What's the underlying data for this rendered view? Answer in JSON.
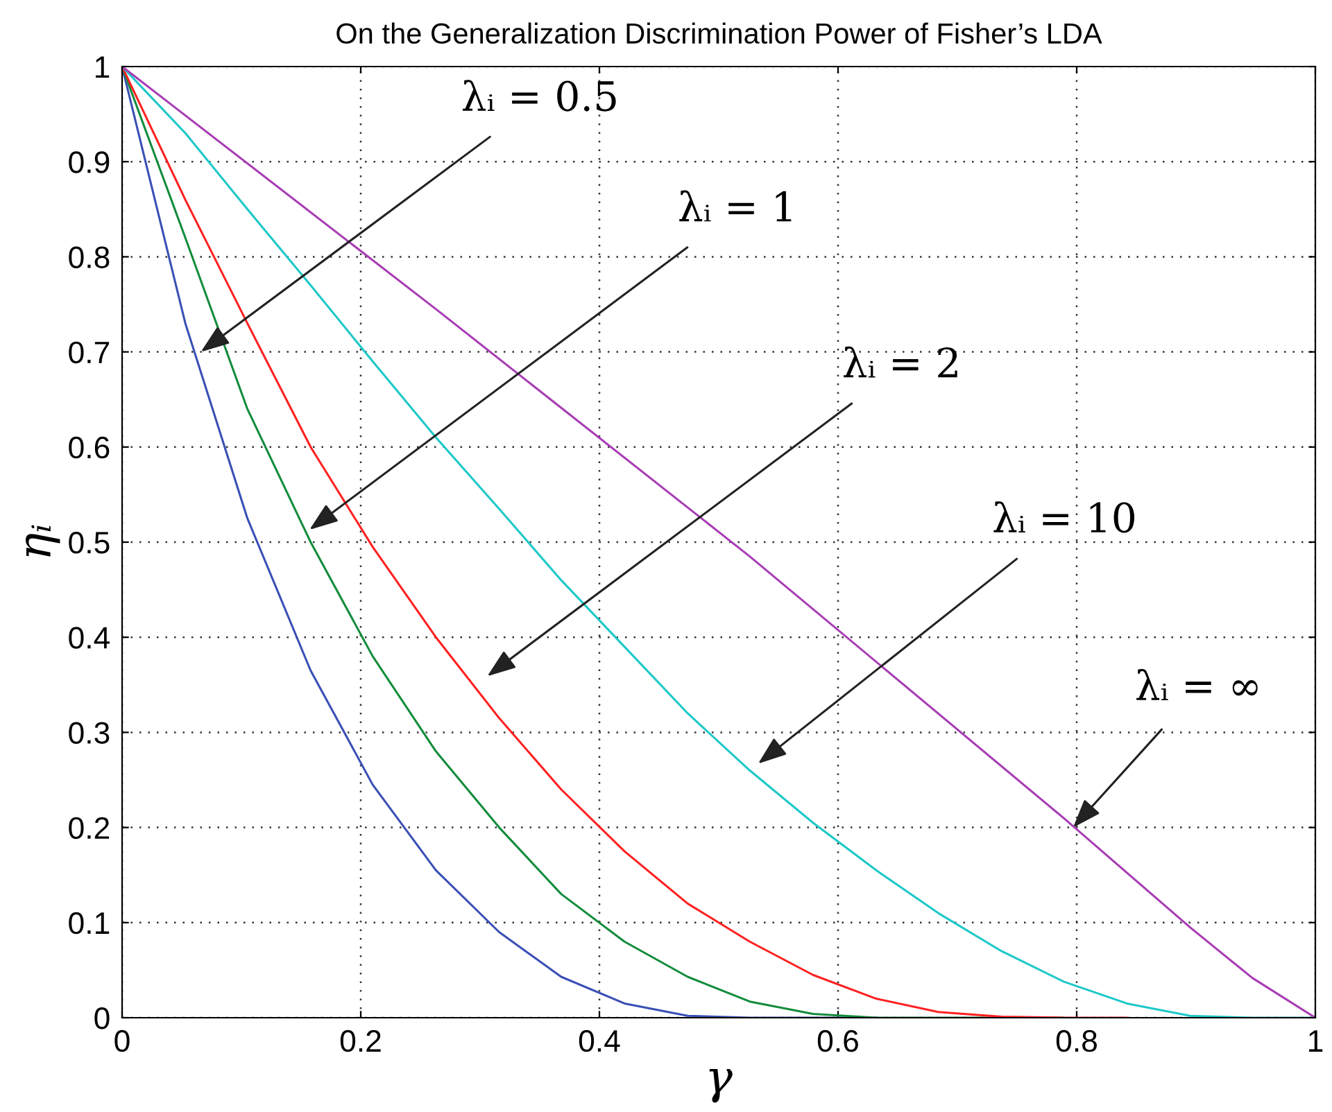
{
  "chart_data": {
    "type": "line",
    "title": "On the Generalization Discrimination Power of Fisher’s LDA",
    "xlabel": "γ",
    "ylabel": "ηᵢ",
    "xlim": [
      0,
      1
    ],
    "ylim": [
      0,
      1
    ],
    "xticks": [
      0,
      0.2,
      0.4,
      0.6,
      0.8,
      1
    ],
    "yticks": [
      0,
      0.1,
      0.2,
      0.3,
      0.4,
      0.5,
      0.6,
      0.7,
      0.8,
      0.9,
      1
    ],
    "grid": true,
    "line_style": "solid",
    "marker": "none",
    "series": [
      {
        "color": "#3a4fb5",
        "x": [
          0,
          0.053,
          0.105,
          0.158,
          0.21,
          0.263,
          0.316,
          0.368,
          0.421,
          0.474,
          0.526,
          0.579,
          0.632
        ],
        "values": [
          1,
          0.73,
          0.525,
          0.365,
          0.245,
          0.155,
          0.09,
          0.043,
          0.015,
          0.002,
          0,
          0,
          0
        ]
      },
      {
        "color": "#138c3c",
        "x": [
          0,
          0.053,
          0.105,
          0.158,
          0.21,
          0.263,
          0.316,
          0.368,
          0.421,
          0.474,
          0.526,
          0.579,
          0.632,
          0.684,
          0.737,
          0.789
        ],
        "values": [
          1,
          0.82,
          0.64,
          0.5,
          0.38,
          0.28,
          0.2,
          0.13,
          0.08,
          0.043,
          0.017,
          0.004,
          0,
          0,
          0,
          0
        ]
      },
      {
        "color": "#ff2020",
        "x": [
          0,
          0.053,
          0.105,
          0.158,
          0.21,
          0.263,
          0.316,
          0.368,
          0.421,
          0.474,
          0.526,
          0.579,
          0.632,
          0.684,
          0.737,
          0.789,
          0.842
        ],
        "values": [
          1,
          0.86,
          0.73,
          0.6,
          0.495,
          0.4,
          0.315,
          0.24,
          0.175,
          0.12,
          0.08,
          0.045,
          0.02,
          0.006,
          0.001,
          0,
          0
        ]
      },
      {
        "color": "#1ec8c8",
        "x": [
          0,
          0.053,
          0.105,
          0.158,
          0.21,
          0.263,
          0.316,
          0.368,
          0.421,
          0.474,
          0.526,
          0.579,
          0.632,
          0.684,
          0.737,
          0.789,
          0.842,
          0.895,
          0.947,
          1
        ],
        "values": [
          1,
          0.93,
          0.85,
          0.77,
          0.69,
          0.61,
          0.535,
          0.46,
          0.39,
          0.32,
          0.26,
          0.205,
          0.155,
          0.11,
          0.07,
          0.038,
          0.015,
          0.002,
          0,
          0
        ]
      },
      {
        "color": "#a83cb4",
        "x": [
          0,
          0.263,
          0.526,
          0.789,
          0.895,
          0.947,
          1
        ],
        "values": [
          1,
          0.745,
          0.485,
          0.21,
          0.095,
          0.042,
          0
        ]
      }
    ],
    "annotations": [
      {
        "text": "λᵢ = 0.5",
        "x": 0.066,
        "y": 0.7
      },
      {
        "text": "λᵢ = 1",
        "x": 0.157,
        "y": 0.513
      },
      "λᵢ = 2",
      "λᵢ = 10",
      {
        "text": "λᵢ = ∞",
        "x": 0.797,
        "y": 0.2
      }
    ]
  }
}
